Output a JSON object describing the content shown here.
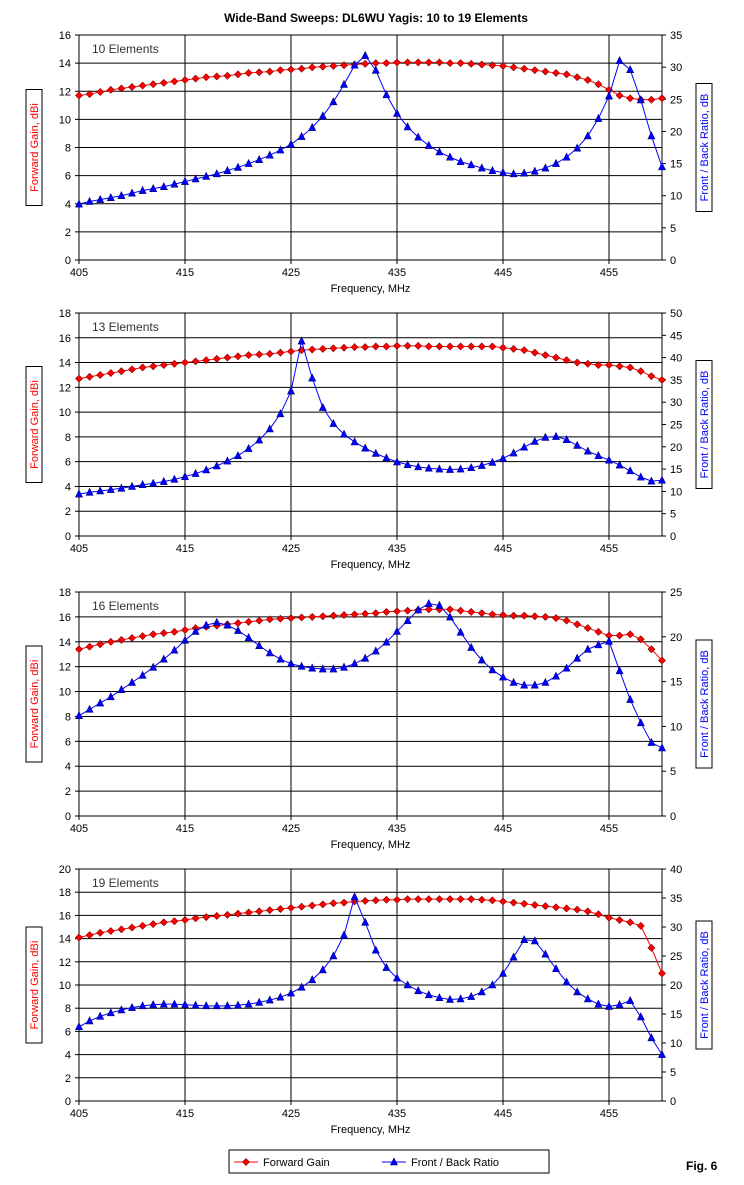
{
  "title": "Wide-Band Sweeps:  DL6WU Yagis: 10 to 19 Elements",
  "figure_label": "Fig. 6",
  "legend": {
    "gain": "Forward Gain",
    "fb": "Front / Back Ratio",
    "placement": "bottom-center"
  },
  "colors": {
    "gain": "#ff0000",
    "gain_marker": "#cc0000",
    "fb": "#0000ff",
    "fb_marker": "#000080"
  },
  "chart_data": [
    {
      "type": "line",
      "annotation": "10 Elements",
      "xlabel": "Frequency, MHz",
      "ylabel": "Forward Gain, dBi",
      "y2label": "Front / Back Ratio, dB",
      "xlim": [
        405,
        460
      ],
      "xticks": [
        405,
        415,
        425,
        435,
        445,
        455
      ],
      "ylim": [
        0,
        16
      ],
      "yticks": [
        0,
        2,
        4,
        6,
        8,
        10,
        12,
        14,
        16
      ],
      "y2lim": [
        0,
        35
      ],
      "y2ticks": [
        0,
        5,
        10,
        15,
        20,
        25,
        30,
        35
      ],
      "grid": true,
      "x_start": 405,
      "x_step": 1,
      "series": [
        {
          "name": "Forward Gain",
          "axis": "left",
          "values": [
            11.7,
            11.8,
            11.95,
            12.1,
            12.2,
            12.3,
            12.4,
            12.5,
            12.6,
            12.7,
            12.8,
            12.9,
            13.0,
            13.05,
            13.1,
            13.2,
            13.3,
            13.35,
            13.4,
            13.5,
            13.55,
            13.6,
            13.7,
            13.75,
            13.8,
            13.85,
            13.9,
            13.95,
            14.0,
            14.0,
            14.05,
            14.05,
            14.05,
            14.05,
            14.05,
            14.0,
            14.0,
            13.95,
            13.9,
            13.85,
            13.8,
            13.7,
            13.6,
            13.5,
            13.4,
            13.3,
            13.2,
            13.0,
            12.8,
            12.5,
            12.1,
            11.7,
            11.5,
            11.4,
            11.4,
            11.5
          ]
        },
        {
          "name": "Front / Back Ratio",
          "axis": "right",
          "values": [
            8.7,
            9.1,
            9.4,
            9.7,
            10.0,
            10.4,
            10.8,
            11.1,
            11.4,
            11.8,
            12.2,
            12.6,
            13.0,
            13.4,
            13.9,
            14.4,
            15.0,
            15.6,
            16.3,
            17.1,
            18.0,
            19.2,
            20.6,
            22.4,
            24.6,
            27.3,
            30.3,
            31.8,
            29.5,
            25.7,
            22.8,
            20.7,
            19.1,
            17.8,
            16.8,
            16.0,
            15.3,
            14.8,
            14.3,
            13.9,
            13.6,
            13.4,
            13.5,
            13.8,
            14.3,
            15.0,
            16.0,
            17.4,
            19.3,
            22.0,
            25.5,
            31.0,
            29.6,
            24.9,
            19.3,
            14.5
          ]
        }
      ]
    },
    {
      "type": "line",
      "annotation": "13 Elements",
      "xlabel": "Frequency, MHz",
      "ylabel": "Forward Gain, dBi",
      "y2label": "Front / Back Ratio, dB",
      "xlim": [
        405,
        460
      ],
      "xticks": [
        405,
        415,
        425,
        435,
        445,
        455
      ],
      "ylim": [
        0,
        18
      ],
      "yticks": [
        0,
        2,
        4,
        6,
        8,
        10,
        12,
        14,
        16,
        18
      ],
      "y2lim": [
        0,
        50
      ],
      "y2ticks": [
        0,
        5,
        10,
        15,
        20,
        25,
        30,
        35,
        40,
        45,
        50
      ],
      "grid": true,
      "x_start": 405,
      "x_step": 1,
      "series": [
        {
          "name": "Forward Gain",
          "axis": "left",
          "values": [
            12.7,
            12.85,
            13.0,
            13.15,
            13.3,
            13.45,
            13.6,
            13.7,
            13.8,
            13.9,
            14.0,
            14.1,
            14.2,
            14.3,
            14.4,
            14.5,
            14.6,
            14.65,
            14.7,
            14.8,
            14.9,
            15.0,
            15.05,
            15.1,
            15.15,
            15.2,
            15.25,
            15.25,
            15.3,
            15.3,
            15.35,
            15.35,
            15.35,
            15.3,
            15.3,
            15.3,
            15.3,
            15.3,
            15.3,
            15.3,
            15.2,
            15.1,
            15.0,
            14.8,
            14.6,
            14.4,
            14.2,
            14.0,
            13.9,
            13.8,
            13.8,
            13.7,
            13.6,
            13.3,
            12.9,
            12.6
          ]
        },
        {
          "name": "Front / Back Ratio",
          "axis": "right",
          "values": [
            9.4,
            9.8,
            10.1,
            10.4,
            10.7,
            11.1,
            11.5,
            11.8,
            12.2,
            12.7,
            13.3,
            14.0,
            14.8,
            15.7,
            16.8,
            18.0,
            19.6,
            21.5,
            24.0,
            27.4,
            32.5,
            43.7,
            35.4,
            28.8,
            25.2,
            22.8,
            21.1,
            19.7,
            18.5,
            17.5,
            16.6,
            16.0,
            15.5,
            15.2,
            15.0,
            14.9,
            15.0,
            15.3,
            15.8,
            16.5,
            17.4,
            18.6,
            19.9,
            21.2,
            22.1,
            22.3,
            21.6,
            20.3,
            19.0,
            18.0,
            17.0,
            15.9,
            14.6,
            13.2,
            12.3,
            12.5
          ]
        }
      ]
    },
    {
      "type": "line",
      "annotation": "16 Elements",
      "xlabel": "Frequency, MHz",
      "ylabel": "Forward Gain, dBi",
      "y2label": "Front / Back Ratio, dB",
      "xlim": [
        405,
        460
      ],
      "xticks": [
        405,
        415,
        425,
        435,
        445,
        455
      ],
      "ylim": [
        0,
        18
      ],
      "yticks": [
        0,
        2,
        4,
        6,
        8,
        10,
        12,
        14,
        16,
        18
      ],
      "y2lim": [
        0,
        25
      ],
      "y2ticks": [
        0,
        5,
        10,
        15,
        20,
        25
      ],
      "grid": true,
      "x_start": 405,
      "x_step": 1,
      "series": [
        {
          "name": "Forward Gain",
          "axis": "left",
          "values": [
            13.4,
            13.6,
            13.8,
            14.0,
            14.15,
            14.3,
            14.45,
            14.6,
            14.7,
            14.8,
            14.95,
            15.1,
            15.2,
            15.3,
            15.4,
            15.5,
            15.6,
            15.7,
            15.8,
            15.85,
            15.9,
            15.95,
            16.0,
            16.05,
            16.1,
            16.15,
            16.2,
            16.25,
            16.3,
            16.4,
            16.45,
            16.5,
            16.55,
            16.6,
            16.6,
            16.6,
            16.5,
            16.4,
            16.3,
            16.2,
            16.15,
            16.1,
            16.1,
            16.05,
            16.0,
            15.9,
            15.7,
            15.4,
            15.1,
            14.8,
            14.5,
            14.5,
            14.6,
            14.2,
            13.4,
            12.5
          ]
        },
        {
          "name": "Front / Back Ratio",
          "axis": "right",
          "values": [
            11.2,
            11.9,
            12.6,
            13.3,
            14.1,
            14.9,
            15.7,
            16.6,
            17.5,
            18.5,
            19.6,
            20.6,
            21.3,
            21.6,
            21.3,
            20.7,
            19.9,
            19.0,
            18.2,
            17.5,
            17.0,
            16.7,
            16.5,
            16.4,
            16.4,
            16.6,
            17.0,
            17.6,
            18.4,
            19.4,
            20.6,
            21.8,
            23.0,
            23.7,
            23.5,
            22.2,
            20.5,
            18.8,
            17.4,
            16.3,
            15.5,
            14.9,
            14.6,
            14.6,
            14.9,
            15.6,
            16.5,
            17.6,
            18.6,
            19.1,
            19.5,
            16.2,
            13.0,
            10.4,
            8.2,
            7.6
          ]
        }
      ]
    },
    {
      "type": "line",
      "annotation": "19 Elements",
      "xlabel": "Frequency, MHz",
      "ylabel": "Forward Gain, dBi",
      "y2label": "Front / Back Ratio, dB",
      "xlim": [
        405,
        460
      ],
      "xticks": [
        405,
        415,
        425,
        435,
        445,
        455
      ],
      "ylim": [
        0,
        20
      ],
      "yticks": [
        0,
        2,
        4,
        6,
        8,
        10,
        12,
        14,
        16,
        18,
        20
      ],
      "y2lim": [
        0,
        40
      ],
      "y2ticks": [
        0,
        5,
        10,
        15,
        20,
        25,
        30,
        35,
        40
      ],
      "grid": true,
      "x_start": 405,
      "x_step": 1,
      "series": [
        {
          "name": "Forward Gain",
          "axis": "left",
          "values": [
            14.1,
            14.3,
            14.5,
            14.65,
            14.8,
            14.95,
            15.1,
            15.25,
            15.4,
            15.5,
            15.6,
            15.75,
            15.85,
            15.95,
            16.05,
            16.15,
            16.25,
            16.35,
            16.45,
            16.55,
            16.65,
            16.75,
            16.85,
            16.95,
            17.05,
            17.1,
            17.2,
            17.25,
            17.3,
            17.35,
            17.35,
            17.4,
            17.4,
            17.4,
            17.4,
            17.4,
            17.4,
            17.4,
            17.35,
            17.3,
            17.2,
            17.1,
            17.0,
            16.9,
            16.8,
            16.7,
            16.6,
            16.5,
            16.35,
            16.1,
            15.8,
            15.6,
            15.4,
            15.1,
            13.2,
            11.0
          ]
        },
        {
          "name": "Front / Back Ratio",
          "axis": "right",
          "values": [
            12.8,
            13.8,
            14.6,
            15.2,
            15.7,
            16.1,
            16.4,
            16.6,
            16.7,
            16.7,
            16.6,
            16.5,
            16.4,
            16.4,
            16.4,
            16.5,
            16.7,
            17.0,
            17.4,
            17.9,
            18.6,
            19.6,
            20.9,
            22.6,
            25.0,
            28.6,
            35.2,
            30.8,
            26.0,
            23.0,
            21.2,
            20.0,
            19.0,
            18.3,
            17.8,
            17.5,
            17.6,
            18.0,
            18.8,
            20.0,
            22.0,
            24.8,
            27.8,
            27.6,
            25.3,
            22.8,
            20.5,
            18.8,
            17.6,
            16.7,
            16.3,
            16.6,
            17.3,
            14.5,
            10.9,
            8.0
          ]
        }
      ]
    }
  ]
}
